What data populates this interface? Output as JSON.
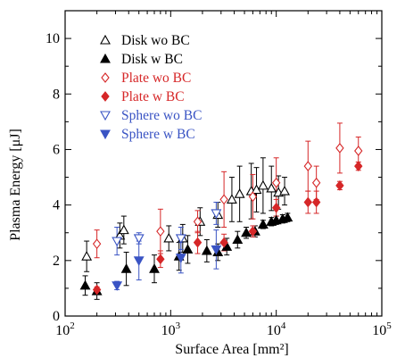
{
  "chart_data": {
    "type": "scatter",
    "xlabel": "Surface Area [mm²]",
    "ylabel": "Plasma Energy [μJ]",
    "x_scale": "log",
    "xlim": [
      100,
      100000
    ],
    "ylim": [
      0,
      11
    ],
    "x_ticks": [
      {
        "base": "10",
        "exp": "2",
        "value": 100
      },
      {
        "base": "10",
        "exp": "3",
        "value": 1000
      },
      {
        "base": "10",
        "exp": "4",
        "value": 10000
      },
      {
        "base": "10",
        "exp": "5",
        "value": 100000
      }
    ],
    "y_ticks": [
      "0",
      "2",
      "4",
      "6",
      "8",
      "10"
    ],
    "grid": false,
    "legend_position": "top-left",
    "series": [
      {
        "name": "Disk wo BC",
        "color": "#000000",
        "marker": "triangle-up",
        "filled": false,
        "points": [
          {
            "x": 160,
            "y": 2.15,
            "err": 0.55
          },
          {
            "x": 330,
            "y": 2.9,
            "err": 0.45
          },
          {
            "x": 360,
            "y": 3.1,
            "err": 0.5
          },
          {
            "x": 960,
            "y": 2.8,
            "err": 0.45
          },
          {
            "x": 1300,
            "y": 2.8,
            "err": 0.5
          },
          {
            "x": 1900,
            "y": 3.4,
            "err": 0.5
          },
          {
            "x": 2800,
            "y": 3.65,
            "err": 0.45
          },
          {
            "x": 3800,
            "y": 4.2,
            "err": 0.8
          },
          {
            "x": 4500,
            "y": 4.4,
            "err": 1.0
          },
          {
            "x": 5800,
            "y": 4.5,
            "err": 1.0
          },
          {
            "x": 6500,
            "y": 4.55,
            "err": 0.8
          },
          {
            "x": 7500,
            "y": 4.7,
            "err": 1.0
          },
          {
            "x": 9000,
            "y": 4.6,
            "err": 0.8
          },
          {
            "x": 10500,
            "y": 4.45,
            "err": 0.6
          },
          {
            "x": 12000,
            "y": 4.5,
            "err": 0.5
          }
        ]
      },
      {
        "name": "Disk w BC",
        "color": "#000000",
        "marker": "triangle-up",
        "filled": true,
        "points": [
          {
            "x": 155,
            "y": 1.1,
            "err": 0.35
          },
          {
            "x": 200,
            "y": 0.9,
            "err": 0.3
          },
          {
            "x": 380,
            "y": 1.7,
            "err": 0.6
          },
          {
            "x": 700,
            "y": 1.7,
            "err": 0.5
          },
          {
            "x": 1200,
            "y": 2.15,
            "err": 0.5
          },
          {
            "x": 1450,
            "y": 2.4,
            "err": 0.5
          },
          {
            "x": 2200,
            "y": 2.35,
            "err": 0.4
          },
          {
            "x": 2800,
            "y": 2.3,
            "err": 0.3
          },
          {
            "x": 3400,
            "y": 2.5,
            "err": 0.3
          },
          {
            "x": 4300,
            "y": 2.75,
            "err": 0.3
          },
          {
            "x": 5200,
            "y": 3.0,
            "err": 0.2
          },
          {
            "x": 6300,
            "y": 3.05,
            "err": 0.2
          },
          {
            "x": 7500,
            "y": 3.3,
            "err": 0.15
          },
          {
            "x": 9000,
            "y": 3.4,
            "err": 0.15
          },
          {
            "x": 10000,
            "y": 3.45,
            "err": 0.15
          },
          {
            "x": 11500,
            "y": 3.5,
            "err": 0.15
          },
          {
            "x": 12800,
            "y": 3.55,
            "err": 0.15
          }
        ]
      },
      {
        "name": "Plate wo BC",
        "color": "#d62728",
        "marker": "diamond",
        "filled": false,
        "points": [
          {
            "x": 200,
            "y": 2.6,
            "err": 0.5
          },
          {
            "x": 800,
            "y": 3.05,
            "err": 0.8
          },
          {
            "x": 1800,
            "y": 3.4,
            "err": 0.4
          },
          {
            "x": 3200,
            "y": 4.2,
            "err": 1.0
          },
          {
            "x": 6000,
            "y": 4.3,
            "err": 0.8
          },
          {
            "x": 10000,
            "y": 4.8,
            "err": 0.9
          },
          {
            "x": 20000,
            "y": 5.4,
            "err": 0.9
          },
          {
            "x": 24000,
            "y": 4.8,
            "err": 0.6
          },
          {
            "x": 40000,
            "y": 6.05,
            "err": 0.9
          },
          {
            "x": 60000,
            "y": 5.95,
            "err": 0.5
          }
        ]
      },
      {
        "name": "Plate w BC",
        "color": "#d62728",
        "marker": "diamond",
        "filled": true,
        "points": [
          {
            "x": 200,
            "y": 0.95,
            "err": 0.1
          },
          {
            "x": 800,
            "y": 2.05,
            "err": 0.3
          },
          {
            "x": 1800,
            "y": 2.65,
            "err": 0.4
          },
          {
            "x": 3200,
            "y": 2.65,
            "err": 0.3
          },
          {
            "x": 6000,
            "y": 3.05,
            "err": 0.2
          },
          {
            "x": 10000,
            "y": 3.9,
            "err": 0.3
          },
          {
            "x": 20000,
            "y": 4.1,
            "err": 0.4
          },
          {
            "x": 24000,
            "y": 4.1,
            "err": 0.4
          },
          {
            "x": 40000,
            "y": 4.7,
            "err": 0.15
          },
          {
            "x": 60000,
            "y": 5.4,
            "err": 0.15
          }
        ]
      },
      {
        "name": "Sphere wo BC",
        "color": "#3a54c4",
        "marker": "triangle-down",
        "filled": false,
        "points": [
          {
            "x": 310,
            "y": 2.7,
            "err": 0.5
          },
          {
            "x": 500,
            "y": 2.8,
            "err": 0.2
          },
          {
            "x": 1250,
            "y": 2.8,
            "err": 0.4
          },
          {
            "x": 2700,
            "y": 3.7,
            "err": 0.4
          }
        ]
      },
      {
        "name": "Sphere w BC",
        "color": "#3a54c4",
        "marker": "triangle-down",
        "filled": true,
        "points": [
          {
            "x": 310,
            "y": 1.1,
            "err": 0.15
          },
          {
            "x": 500,
            "y": 2.0,
            "err": 0.7
          },
          {
            "x": 1250,
            "y": 2.1,
            "err": 0.55
          },
          {
            "x": 2700,
            "y": 2.4,
            "err": 0.7
          }
        ]
      }
    ]
  }
}
